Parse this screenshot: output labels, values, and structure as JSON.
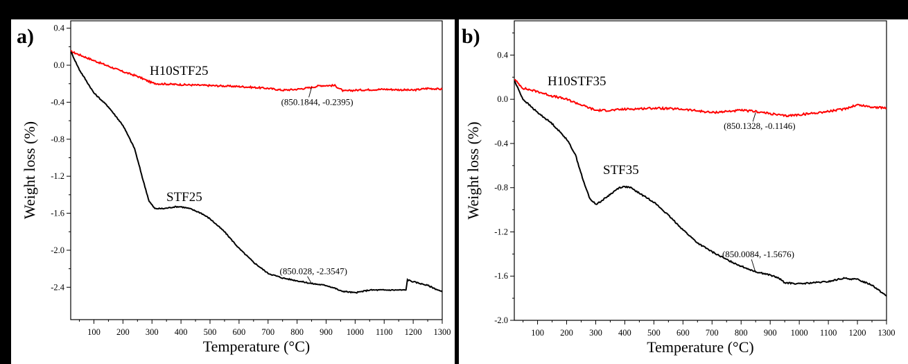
{
  "colors": {
    "red_series": "#ff0000",
    "black_series": "#000000"
  },
  "chart_data": [
    {
      "type": "line",
      "panel_label": "a)",
      "xlabel": "Temperature (°C)",
      "ylabel": "Weight loss (%)",
      "xlim": [
        20,
        1300
      ],
      "ylim": [
        -2.75,
        0.48
      ],
      "xticks": [
        100,
        200,
        300,
        400,
        500,
        600,
        700,
        800,
        900,
        1000,
        1100,
        1200,
        1300
      ],
      "yticks": [
        0.4,
        0.0,
        -0.4,
        -0.8,
        -1.2,
        -1.6,
        -2.0,
        -2.4
      ],
      "ytick_labels": [
        "0.4",
        "0.0",
        "-0.4",
        "-0.8",
        "-1.2",
        "-1.6",
        "-2.0",
        "-2.4"
      ],
      "series": [
        {
          "name": "H10STF25",
          "color": "#ff0000",
          "x": [
            20,
            100,
            200,
            250,
            300,
            320,
            400,
            500,
            600,
            700,
            750,
            800,
            850,
            880,
            930,
            960,
            1000,
            1100,
            1200,
            1250,
            1300
          ],
          "y": [
            0.15,
            0.05,
            -0.07,
            -0.12,
            -0.19,
            -0.2,
            -0.21,
            -0.22,
            -0.23,
            -0.25,
            -0.27,
            -0.26,
            -0.24,
            -0.22,
            -0.22,
            -0.28,
            -0.27,
            -0.26,
            -0.27,
            -0.25,
            -0.26
          ]
        },
        {
          "name": "STF25",
          "color": "#000000",
          "x": [
            20,
            50,
            100,
            150,
            200,
            240,
            270,
            290,
            310,
            340,
            380,
            400,
            430,
            470,
            500,
            550,
            600,
            650,
            700,
            750,
            800,
            850,
            900,
            930,
            950,
            1000,
            1050,
            1100,
            1150,
            1175,
            1180,
            1200,
            1250,
            1300
          ],
          "y": [
            0.15,
            -0.05,
            -0.3,
            -0.45,
            -0.65,
            -0.9,
            -1.25,
            -1.47,
            -1.55,
            -1.55,
            -1.53,
            -1.53,
            -1.55,
            -1.6,
            -1.66,
            -1.8,
            -1.98,
            -2.13,
            -2.25,
            -2.3,
            -2.33,
            -2.36,
            -2.38,
            -2.41,
            -2.44,
            -2.46,
            -2.43,
            -2.43,
            -2.43,
            -2.43,
            -2.32,
            -2.34,
            -2.38,
            -2.45
          ]
        }
      ],
      "annotations": [
        {
          "text": "(850.1844, -0.2395)",
          "x": 850,
          "y": -0.24,
          "label_x": 745,
          "label_y": -0.43
        },
        {
          "text": "(850.028, -2.3547)",
          "x": 850,
          "y": -2.36,
          "label_x": 740,
          "label_y": -2.26
        }
      ]
    },
    {
      "type": "line",
      "panel_label": "b)",
      "xlabel": "Temperature (°C)",
      "ylabel": "Weight loss (%)",
      "xlim": [
        20,
        1300
      ],
      "ylim": [
        -2.0,
        0.71
      ],
      "xticks": [
        100,
        200,
        300,
        400,
        500,
        600,
        700,
        800,
        900,
        1000,
        1100,
        1200,
        1300
      ],
      "yticks": [
        0.4,
        0.0,
        -0.4,
        -0.8,
        -1.2,
        -1.6,
        -2.0
      ],
      "ytick_labels": [
        "0.4",
        "0.0",
        "-0.4",
        "-0.8",
        "-1.2",
        "-1.6",
        "-2.0"
      ],
      "series": [
        {
          "name": "H10STF35",
          "color": "#ff0000",
          "x": [
            20,
            50,
            100,
            150,
            200,
            250,
            300,
            350,
            400,
            500,
            600,
            700,
            800,
            850,
            900,
            950,
            1000,
            1100,
            1150,
            1200,
            1250,
            1300
          ],
          "y": [
            0.18,
            0.1,
            0.07,
            0.03,
            0.0,
            -0.05,
            -0.1,
            -0.1,
            -0.09,
            -0.08,
            -0.09,
            -0.12,
            -0.1,
            -0.11,
            -0.13,
            -0.15,
            -0.14,
            -0.11,
            -0.09,
            -0.05,
            -0.07,
            -0.08
          ]
        },
        {
          "name": "STF35",
          "color": "#000000",
          "x": [
            20,
            50,
            100,
            150,
            200,
            230,
            260,
            280,
            300,
            320,
            350,
            380,
            400,
            420,
            450,
            500,
            550,
            600,
            650,
            700,
            750,
            800,
            850,
            900,
            930,
            950,
            1000,
            1050,
            1100,
            1150,
            1200,
            1250,
            1300
          ],
          "y": [
            0.17,
            0.0,
            -0.12,
            -0.22,
            -0.36,
            -0.5,
            -0.76,
            -0.9,
            -0.95,
            -0.92,
            -0.86,
            -0.8,
            -0.79,
            -0.8,
            -0.85,
            -0.93,
            -1.05,
            -1.18,
            -1.3,
            -1.38,
            -1.45,
            -1.51,
            -1.56,
            -1.59,
            -1.62,
            -1.66,
            -1.67,
            -1.66,
            -1.65,
            -1.62,
            -1.63,
            -1.68,
            -1.78
          ]
        }
      ],
      "annotations": [
        {
          "text": "(850.1328, -0.1146)",
          "x": 850,
          "y": -0.12,
          "label_x": 740,
          "label_y": -0.27
        },
        {
          "text": "(850.0084, -1.5676)",
          "x": 850,
          "y": -1.57,
          "label_x": 735,
          "label_y": -1.43
        }
      ]
    }
  ]
}
